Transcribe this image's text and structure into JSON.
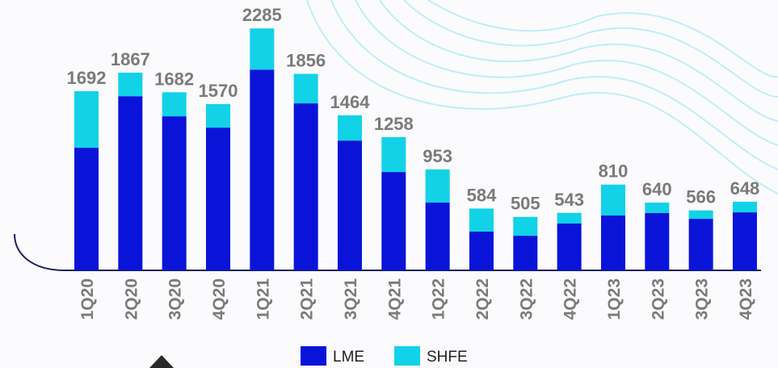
{
  "chart_data": {
    "type": "stacked_bar",
    "categories": [
      "1Q20",
      "2Q20",
      "3Q20",
      "4Q20",
      "1Q21",
      "2Q21",
      "3Q21",
      "4Q21",
      "1Q22",
      "2Q22",
      "3Q22",
      "4Q22",
      "1Q23",
      "2Q23",
      "3Q23",
      "4Q23"
    ],
    "series": [
      {
        "name": "LME",
        "color": "#0a14d8",
        "values": [
          1158,
          1645,
          1455,
          1348,
          1896,
          1577,
          1226,
          929,
          640,
          366,
          327,
          442,
          518,
          541,
          487,
          548
        ]
      },
      {
        "name": "SHFE",
        "color": "#12d2e8",
        "values": [
          534,
          222,
          227,
          222,
          389,
          279,
          238,
          329,
          313,
          218,
          178,
          101,
          292,
          99,
          79,
          100
        ]
      }
    ],
    "totals": [
      1692,
      1867,
      1682,
      1570,
      2285,
      1856,
      1464,
      1258,
      953,
      584,
      505,
      543,
      810,
      640,
      566,
      648
    ],
    "ylim": [
      0,
      2500
    ]
  }
}
